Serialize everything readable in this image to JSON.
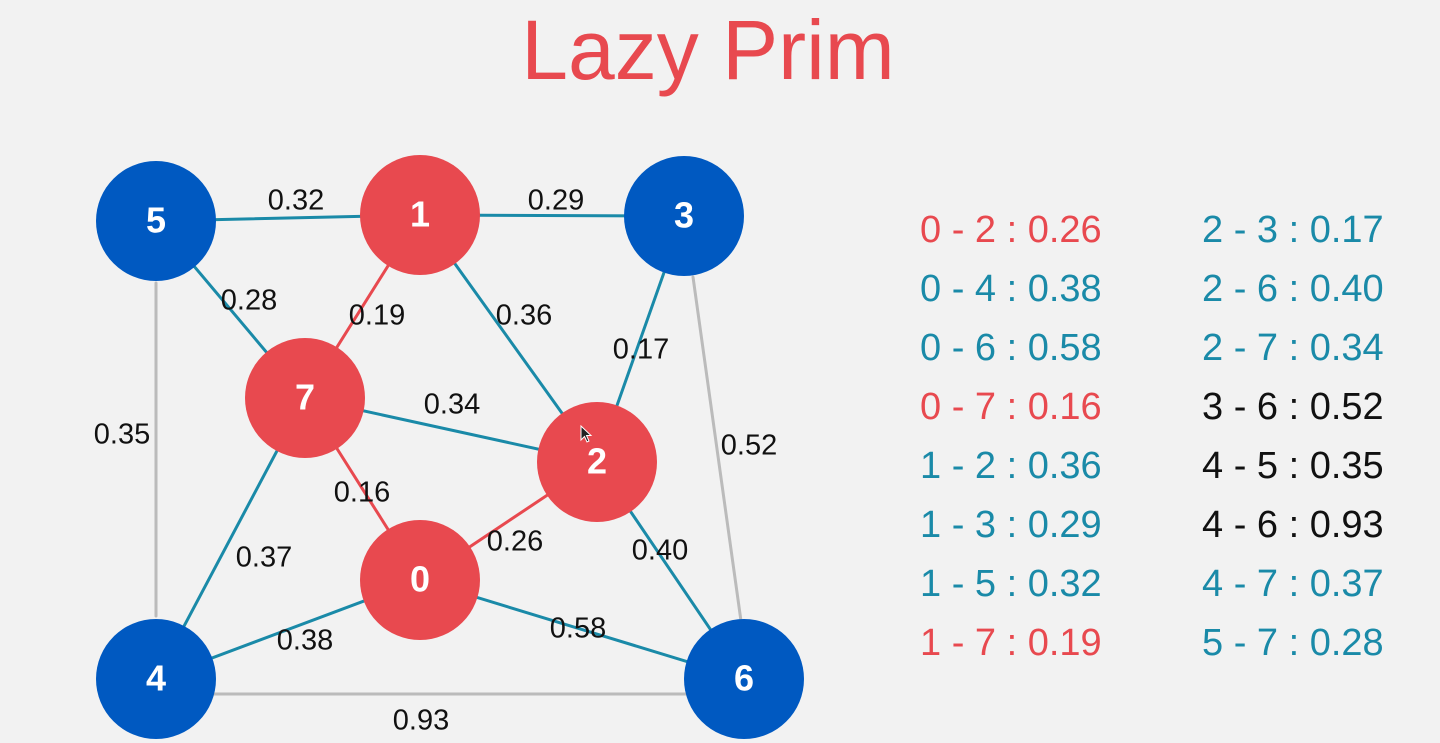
{
  "title": "Lazy Prim",
  "colors": {
    "background": "#f2f2f2",
    "tree_node": "#e8494f",
    "other_node": "#0059c1",
    "tree_edge": "#e8494f",
    "candidate_edge": "#1a8aa8",
    "ignored_edge": "#bbbbbb",
    "ignored_text": "#111111",
    "title": "#e8494f"
  },
  "nodes": [
    {
      "id": "0",
      "state": "tree"
    },
    {
      "id": "1",
      "state": "tree"
    },
    {
      "id": "2",
      "state": "tree"
    },
    {
      "id": "3",
      "state": "other"
    },
    {
      "id": "4",
      "state": "other"
    },
    {
      "id": "5",
      "state": "other"
    },
    {
      "id": "6",
      "state": "other"
    },
    {
      "id": "7",
      "state": "tree"
    }
  ],
  "edges": [
    {
      "from": "0",
      "to": "2",
      "weight": "0.26",
      "state": "tree"
    },
    {
      "from": "0",
      "to": "4",
      "weight": "0.38",
      "state": "candidate"
    },
    {
      "from": "0",
      "to": "6",
      "weight": "0.58",
      "state": "candidate"
    },
    {
      "from": "0",
      "to": "7",
      "weight": "0.16",
      "state": "tree"
    },
    {
      "from": "1",
      "to": "2",
      "weight": "0.36",
      "state": "candidate"
    },
    {
      "from": "1",
      "to": "3",
      "weight": "0.29",
      "state": "candidate"
    },
    {
      "from": "1",
      "to": "5",
      "weight": "0.32",
      "state": "candidate"
    },
    {
      "from": "1",
      "to": "7",
      "weight": "0.19",
      "state": "tree"
    },
    {
      "from": "2",
      "to": "3",
      "weight": "0.17",
      "state": "candidate"
    },
    {
      "from": "2",
      "to": "6",
      "weight": "0.40",
      "state": "candidate"
    },
    {
      "from": "2",
      "to": "7",
      "weight": "0.34",
      "state": "candidate"
    },
    {
      "from": "3",
      "to": "6",
      "weight": "0.52",
      "state": "ignored"
    },
    {
      "from": "4",
      "to": "5",
      "weight": "0.35",
      "state": "ignored"
    },
    {
      "from": "4",
      "to": "6",
      "weight": "0.93",
      "state": "ignored"
    },
    {
      "from": "4",
      "to": "7",
      "weight": "0.37",
      "state": "candidate"
    },
    {
      "from": "5",
      "to": "7",
      "weight": "0.28",
      "state": "candidate"
    }
  ],
  "edge_list": {
    "left": [
      {
        "text": "0 - 2 : 0.26",
        "state": "tree"
      },
      {
        "text": "0 - 4 : 0.38",
        "state": "candidate"
      },
      {
        "text": "0 - 6 : 0.58",
        "state": "candidate"
      },
      {
        "text": "0 - 7 : 0.16",
        "state": "tree"
      },
      {
        "text": "1 - 2 : 0.36",
        "state": "candidate"
      },
      {
        "text": "1 - 3 : 0.29",
        "state": "candidate"
      },
      {
        "text": "1 - 5 : 0.32",
        "state": "candidate"
      },
      {
        "text": "1 - 7 : 0.19",
        "state": "tree"
      }
    ],
    "right": [
      {
        "text": "2 - 3 : 0.17",
        "state": "candidate"
      },
      {
        "text": "2 - 6 : 0.40",
        "state": "candidate"
      },
      {
        "text": "2 - 7 : 0.34",
        "state": "candidate"
      },
      {
        "text": "3 - 6 : 0.52",
        "state": "ignored"
      },
      {
        "text": "4 - 5 : 0.35",
        "state": "ignored"
      },
      {
        "text": "4 - 6 : 0.93",
        "state": "ignored"
      },
      {
        "text": "4 - 7 : 0.37",
        "state": "candidate"
      },
      {
        "text": "5 - 7 : 0.28",
        "state": "candidate"
      }
    ]
  },
  "cursor_icon": "mouse-pointer-icon"
}
